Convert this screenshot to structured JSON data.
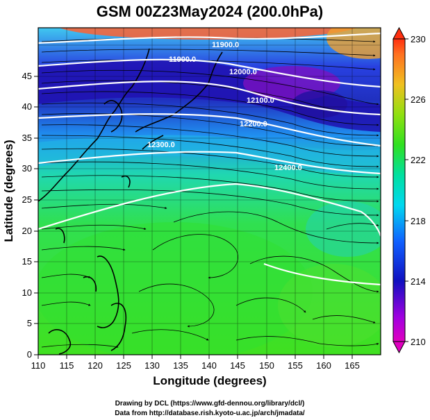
{
  "title": "GSM 00Z23May2024 (200.0hPa)",
  "xaxis": {
    "label": "Longitude (degrees)",
    "range": [
      110,
      170
    ],
    "ticks": [
      "110",
      "115",
      "120",
      "125",
      "130",
      "135",
      "140",
      "145",
      "150",
      "155",
      "160",
      "165"
    ]
  },
  "yaxis": {
    "label": "Latitude  (degrees)",
    "range": [
      0,
      50
    ],
    "ticks": [
      "0",
      "5",
      "10",
      "15",
      "20",
      "25",
      "30",
      "35",
      "40",
      "45"
    ]
  },
  "colorbar": {
    "ticks": [
      "210",
      "214",
      "218",
      "222",
      "226",
      "230"
    ]
  },
  "contour_labels": [
    "11900.0",
    "11900.0",
    "12000.0",
    "12100.0",
    "12200.0",
    "12300.0",
    "12400.0"
  ],
  "credits": {
    "line1": "Drawing by DCL (https://www.gfd-dennou.org/library/dcl/)",
    "line2": "Data from http://database.rish.kyoto-u.ac.jp/arch/jmadata/"
  }
}
